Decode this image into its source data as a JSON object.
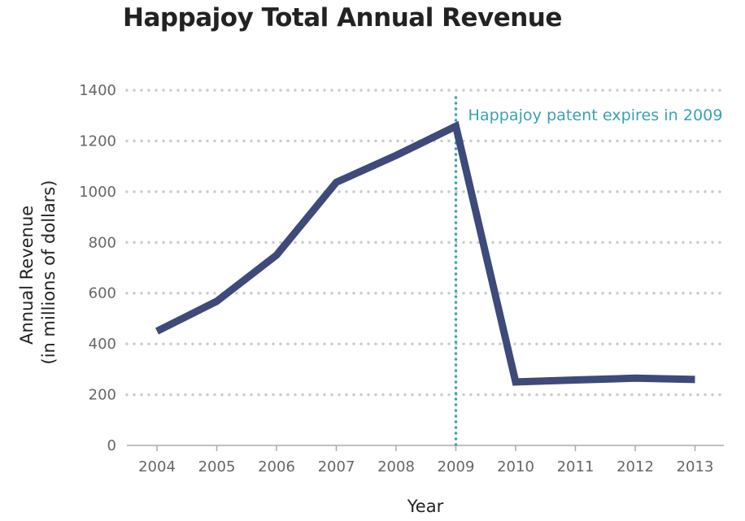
{
  "chart_data": {
    "type": "line",
    "title": "Happajoy Total Annual Revenue",
    "xlabel": "Year",
    "ylabel_lines": [
      "Annual Revenue",
      "(in millions of dollars)"
    ],
    "x": [
      2004,
      2005,
      2006,
      2007,
      2008,
      2009,
      2010,
      2011,
      2012,
      2013
    ],
    "series": [
      {
        "values": [
          450,
          568,
          750,
          1037,
          1143,
          1258,
          250,
          258,
          265,
          260
        ]
      }
    ],
    "yticks": [
      0,
      200,
      400,
      600,
      800,
      1000,
      1200,
      1400
    ],
    "ylim": [
      0,
      1400
    ],
    "grid": true,
    "annotation": {
      "x": 2009,
      "text": "Happajoy patent expires in 2009"
    },
    "colors": {
      "line": "#3d4a7a",
      "annotation": "#3aa1b5",
      "grid": "#cccccc",
      "axis": "#aaaaaa"
    }
  }
}
